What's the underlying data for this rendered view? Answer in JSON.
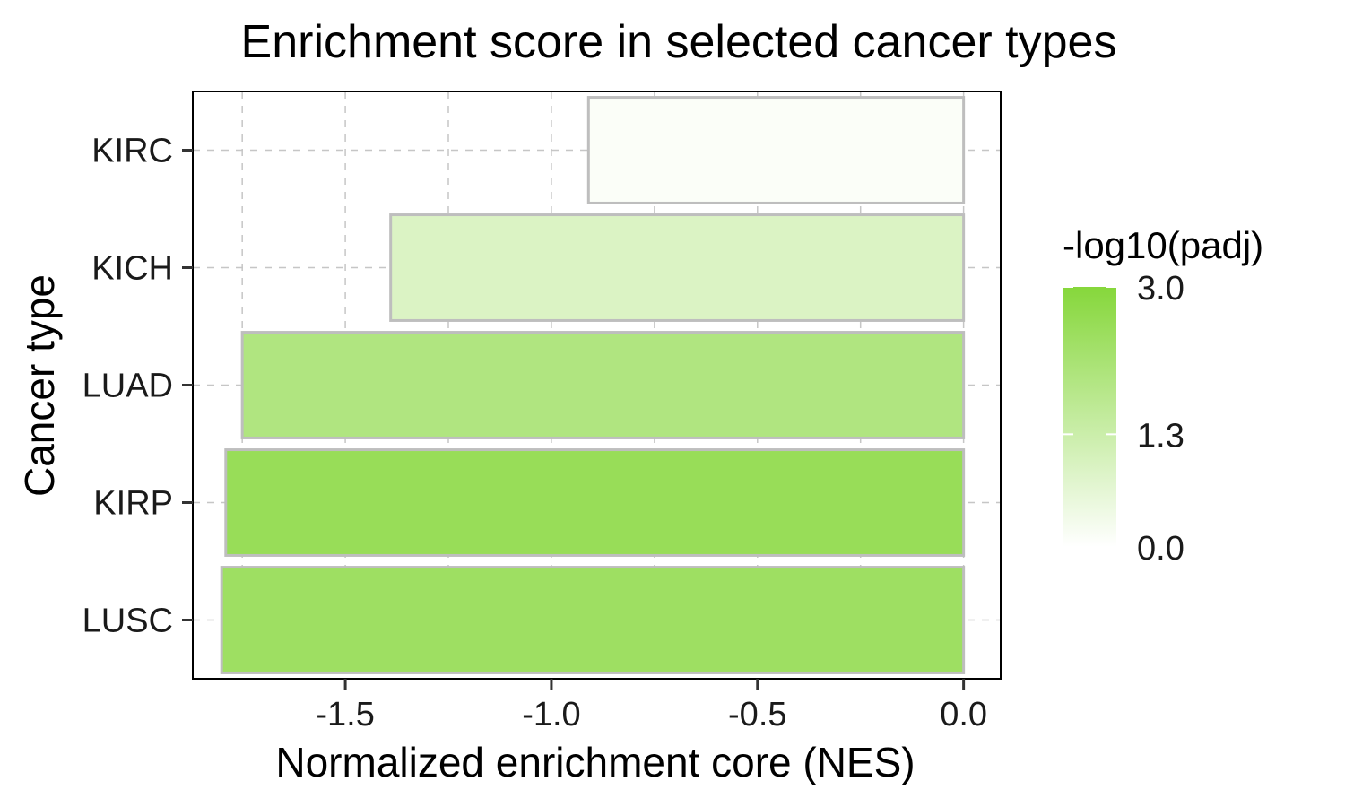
{
  "chart_data": {
    "type": "bar",
    "orientation": "horizontal",
    "title": "Enrichment score in selected cancer types",
    "xlabel": "Normalized enrichment core (NES)",
    "ylabel": "Cancer type",
    "categories": [
      "KIRC",
      "KICH",
      "LUAD",
      "KIRP",
      "LUSC"
    ],
    "values": [
      -0.91,
      -1.39,
      -1.75,
      -1.79,
      -1.8
    ],
    "color_values": [
      0.1,
      0.9,
      1.95,
      2.55,
      2.4
    ],
    "xlim": [
      -1.87,
      0.09
    ],
    "xticks": [
      -1.5,
      -1.0,
      -0.5,
      0.0
    ],
    "xtick_labels": [
      "-1.5",
      "-1.0",
      "-0.5",
      "0.0"
    ],
    "grid": true,
    "legend": {
      "title": "-log10(padj)",
      "position": "right",
      "type": "colorbar",
      "range": [
        0.0,
        3.0
      ],
      "ticks": [
        0.0,
        1.3,
        3.0
      ],
      "tick_labels": [
        "0.0",
        "1.3",
        "3.0"
      ],
      "low_color": "#ffffff",
      "high_color": "#86d73b"
    },
    "bar_border_color": "#bebebe"
  }
}
